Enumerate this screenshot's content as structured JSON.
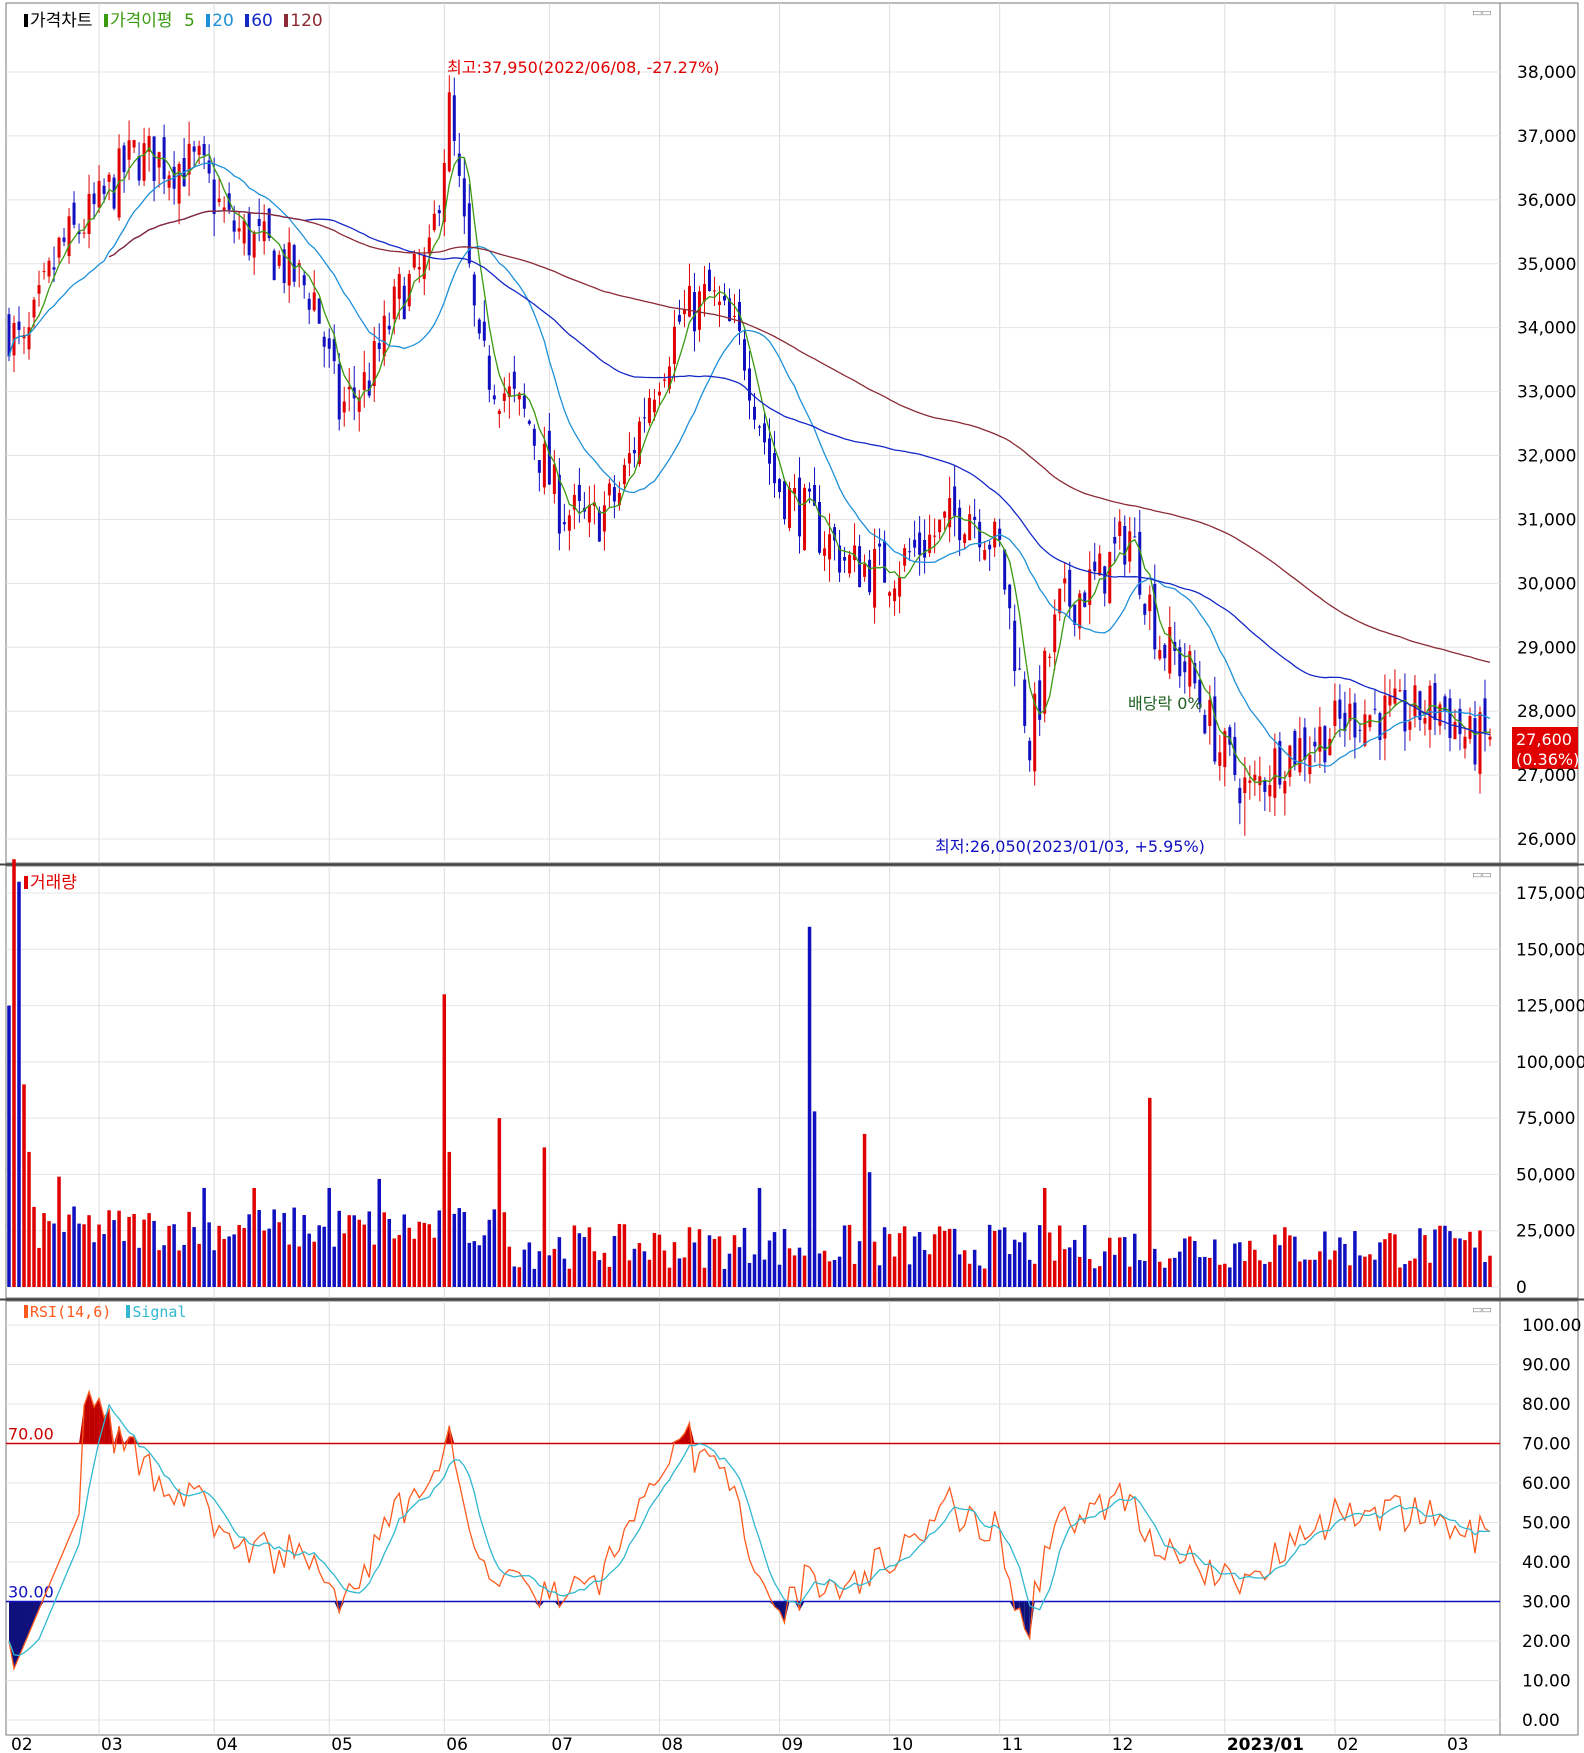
{
  "legends": {
    "price": {
      "title": "가격차트",
      "ma_label": "가격이평",
      "ma": [
        "5",
        "20",
        "60",
        "120"
      ]
    },
    "volume": {
      "title": "거래량"
    },
    "rsi": {
      "title": "RSI(14,6)",
      "signal": "Signal"
    }
  },
  "colors": {
    "up": "#e00000",
    "down": "#1010c0",
    "ma5": "#3a9a10",
    "ma20": "#1e90d8",
    "ma60": "#1428c8",
    "ma120": "#8b2a35",
    "rsi": "#ff5a1e",
    "signal": "#30b8d0"
  },
  "chart_data": [
    {
      "type": "candlestick",
      "name": "price",
      "ylim": [
        25700,
        38600
      ],
      "y_ticks": [
        "38,000",
        "37,000",
        "36,000",
        "35,000",
        "34,000",
        "33,000",
        "32,000",
        "31,000",
        "30,000",
        "29,000",
        "28,000",
        "27,000",
        "26,000"
      ],
      "x_ticks": [
        "02",
        "03",
        "04",
        "05",
        "06",
        "07",
        "08",
        "09",
        "10",
        "11",
        "12",
        "2023/01",
        "02",
        "03"
      ],
      "last_price": "27,600",
      "last_change": "(0.36%)",
      "annotations": {
        "high": "최고:37,950(2022/06/08, -27.27%)",
        "low": "최저:26,050(2023/01/03, +5.95%)",
        "dividend": "배당락 0%"
      },
      "anchors": [
        [
          0,
          34000
        ],
        [
          3,
          33600
        ],
        [
          10,
          35200
        ],
        [
          18,
          35900
        ],
        [
          25,
          36700
        ],
        [
          38,
          36500
        ],
        [
          44,
          35600
        ],
        [
          52,
          35200
        ],
        [
          61,
          34500
        ],
        [
          66,
          32700
        ],
        [
          72,
          33200
        ],
        [
          78,
          34500
        ],
        [
          84,
          35000
        ],
        [
          88,
          37400
        ],
        [
          94,
          33500
        ],
        [
          104,
          32500
        ],
        [
          110,
          31200
        ],
        [
          116,
          30900
        ],
        [
          122,
          31400
        ],
        [
          128,
          33000
        ],
        [
          134,
          34100
        ],
        [
          140,
          34500
        ],
        [
          147,
          33600
        ],
        [
          153,
          31600
        ],
        [
          160,
          31000
        ],
        [
          168,
          30300
        ],
        [
          176,
          30200
        ],
        [
          184,
          30700
        ],
        [
          192,
          31200
        ],
        [
          198,
          30500
        ],
        [
          204,
          27500
        ],
        [
          210,
          29600
        ],
        [
          218,
          30100
        ],
        [
          224,
          30800
        ],
        [
          230,
          29100
        ],
        [
          236,
          28600
        ],
        [
          242,
          27400
        ],
        [
          248,
          26700
        ],
        [
          254,
          27300
        ],
        [
          262,
          27600
        ],
        [
          270,
          28000
        ],
        [
          278,
          27900
        ],
        [
          286,
          28100
        ],
        [
          292,
          27500
        ],
        [
          296,
          27600
        ]
      ],
      "ma_periods": [
        5,
        20,
        60,
        120
      ]
    },
    {
      "type": "bar",
      "name": "volume",
      "ylim": [
        0,
        195000
      ],
      "y_ticks": [
        "175,000",
        "150,000",
        "125,000",
        "100,000",
        "75,000",
        "50,000",
        "25,000",
        "0"
      ],
      "spikes": [
        [
          0,
          125000
        ],
        [
          1,
          190000
        ],
        [
          2,
          180000
        ],
        [
          3,
          90000
        ],
        [
          4,
          60000
        ],
        [
          10,
          49000
        ],
        [
          39,
          44000
        ],
        [
          49,
          44000
        ],
        [
          64,
          44000
        ],
        [
          74,
          48000
        ],
        [
          87,
          130000
        ],
        [
          88,
          60000
        ],
        [
          98,
          75000
        ],
        [
          107,
          62000
        ],
        [
          150,
          44000
        ],
        [
          160,
          160000
        ],
        [
          161,
          78000
        ],
        [
          171,
          68000
        ],
        [
          172,
          51000
        ],
        [
          207,
          44000
        ],
        [
          228,
          84000
        ]
      ]
    },
    {
      "type": "line",
      "name": "rsi",
      "ylim": [
        0,
        100
      ],
      "levels": [
        70,
        30
      ],
      "level_labels": [
        "70.00",
        "30.00"
      ],
      "y_ticks": [
        "100.00",
        "90.00",
        "80.00",
        "70.00",
        "60.00",
        "50.00",
        "40.00",
        "30.00",
        "20.00",
        "10.00",
        "0.00"
      ]
    }
  ]
}
